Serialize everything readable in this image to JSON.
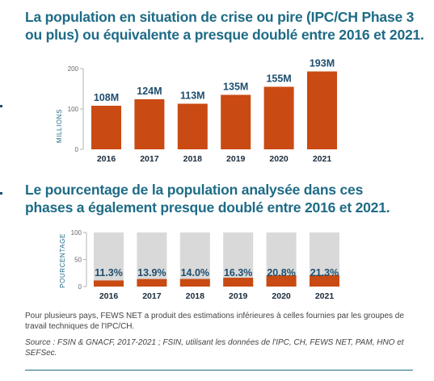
{
  "colors": {
    "title": "#1e6b86",
    "bar": "#c94a12",
    "track": "#d9d9d9",
    "value_label": "#1e4e6e",
    "category_label": "#1a2b3c",
    "axis": "#b3b3b3"
  },
  "chart_data": [
    {
      "type": "bar",
      "title": "La population en situation de crise ou pire (IPC/CH Phase 3 ou plus) ou équivalente a presque doublé entre 2016 et 2021.",
      "ylabel": "MILLIONS",
      "categories": [
        "2016",
        "2017",
        "2018",
        "2019",
        "2020",
        "2021"
      ],
      "values": [
        108,
        124,
        113,
        135,
        155,
        193
      ],
      "value_labels": [
        "108M",
        "124M",
        "113M",
        "135M",
        "155M",
        "193M"
      ],
      "ylim": [
        0,
        200
      ],
      "yticks": [
        0,
        100,
        200
      ],
      "ytick_labels": [
        "0",
        "100",
        "200"
      ],
      "grid": false,
      "legend": "none"
    },
    {
      "type": "bar",
      "title": "Le pourcentage de la population analysée dans ces phases a également presque doublé entre 2016 et 2021.",
      "ylabel": "POURCENTAGE",
      "categories": [
        "2016",
        "2017",
        "2018",
        "2019",
        "2020",
        "2021"
      ],
      "values": [
        11.3,
        13.9,
        14.0,
        16.3,
        20.8,
        21.3
      ],
      "value_labels": [
        "11.3%",
        "13.9%",
        "14.0%",
        "16.3%",
        "20.8%",
        "21.3%"
      ],
      "ylim": [
        0,
        100
      ],
      "yticks": [
        0,
        50,
        100
      ],
      "ytick_labels": [
        "0",
        "50",
        "100"
      ],
      "grid": false,
      "legend": "none"
    }
  ],
  "notes": {
    "footnote": "Pour plusieurs pays, FEWS NET a produit des estimations inférieures à celles fournies par les groupes de travail techniques de l'IPC/CH.",
    "source": "Source : FSIN & GNACF, 2017-2021 ; FSIN, utilisant les données de l'IPC, CH, FEWS NET, PAM, HNO et SEFSec."
  }
}
